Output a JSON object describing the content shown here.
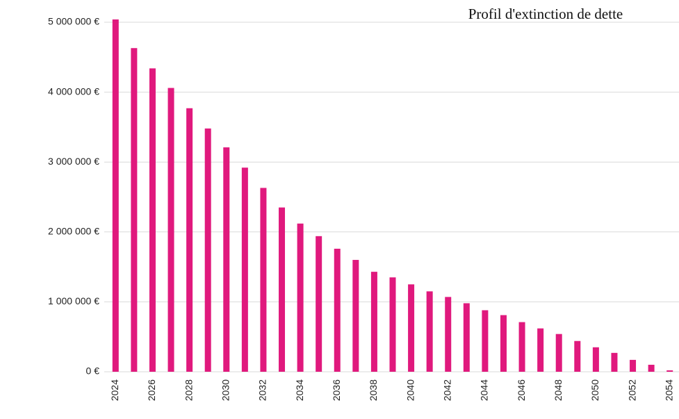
{
  "chart_data": {
    "type": "bar",
    "title": "Profil d'extinction de dette",
    "categories": [
      "2024",
      null,
      "2026",
      null,
      "2028",
      null,
      "2030",
      null,
      "2032",
      null,
      "2034",
      null,
      "2036",
      null,
      "2038",
      null,
      "2040",
      null,
      "2042",
      null,
      "2044",
      null,
      "2046",
      null,
      "2048",
      null,
      "2050",
      null,
      "2052",
      null,
      "2054"
    ],
    "values": [
      5040000,
      4630000,
      4340000,
      4060000,
      3770000,
      3480000,
      3210000,
      2920000,
      2630000,
      2350000,
      2120000,
      1940000,
      1760000,
      1600000,
      1430000,
      1350000,
      1250000,
      1150000,
      1070000,
      980000,
      880000,
      810000,
      710000,
      620000,
      540000,
      440000,
      350000,
      270000,
      170000,
      100000,
      20000
    ],
    "color": "#e0197d",
    "ylim": [
      0,
      5000000
    ],
    "yticks": [
      {
        "value": 0,
        "label": "0 €"
      },
      {
        "value": 1000000,
        "label": "1 000 000 €"
      },
      {
        "value": 2000000,
        "label": "2 000 000 €"
      },
      {
        "value": 3000000,
        "label": "3 000 000 €"
      },
      {
        "value": 4000000,
        "label": "4 000 000 €"
      },
      {
        "value": 5000000,
        "label": "5 000 000 €"
      }
    ],
    "grid": true
  }
}
